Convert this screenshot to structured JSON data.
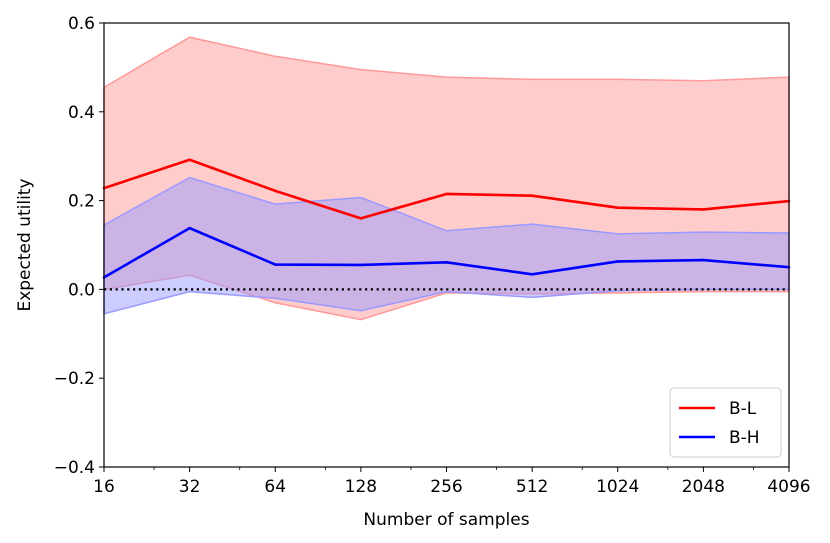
{
  "chart_data": {
    "type": "line",
    "title": "",
    "xlabel": "Number of samples",
    "ylabel": "Expected utility",
    "x_scale": "log2",
    "x": [
      16,
      32,
      64,
      128,
      256,
      512,
      1024,
      2048,
      4096
    ],
    "xlim": [
      16,
      4096
    ],
    "ylim": [
      -0.4,
      0.6
    ],
    "xticks": [
      "16",
      "32",
      "64",
      "128",
      "256",
      "512",
      "1024",
      "2048",
      "4096"
    ],
    "yticks": [
      {
        "value": -0.4,
        "label": "−0.4"
      },
      {
        "value": -0.2,
        "label": "−0.2"
      },
      {
        "value": 0.0,
        "label": "0.0"
      },
      {
        "value": 0.2,
        "label": "0.2"
      },
      {
        "value": 0.4,
        "label": "0.4"
      },
      {
        "value": 0.6,
        "label": "0.6"
      }
    ],
    "grid": false,
    "legend_position": "lower-right",
    "reference_line": {
      "y": 0.0,
      "style": "dotted",
      "color": "#000000"
    },
    "series": [
      {
        "name": "B-L",
        "color": "#ff0000",
        "band_color": "#ff9999",
        "values": [
          0.228,
          0.292,
          0.222,
          0.16,
          0.215,
          0.211,
          0.184,
          0.18,
          0.199
        ],
        "lower": [
          0.0,
          0.032,
          -0.03,
          -0.068,
          -0.008,
          -0.01,
          -0.008,
          -0.005,
          -0.005
        ],
        "upper": [
          0.455,
          0.568,
          0.525,
          0.495,
          0.478,
          0.473,
          0.473,
          0.47,
          0.478
        ]
      },
      {
        "name": "B-H",
        "color": "#0000ff",
        "band_color": "#9999ff",
        "values": [
          0.027,
          0.138,
          0.056,
          0.055,
          0.061,
          0.034,
          0.063,
          0.066,
          0.05
        ],
        "lower": [
          -0.055,
          -0.005,
          -0.02,
          -0.048,
          -0.005,
          -0.018,
          -0.003,
          0.0,
          0.0
        ],
        "upper": [
          0.145,
          0.252,
          0.192,
          0.207,
          0.132,
          0.147,
          0.125,
          0.129,
          0.127
        ]
      }
    ]
  }
}
